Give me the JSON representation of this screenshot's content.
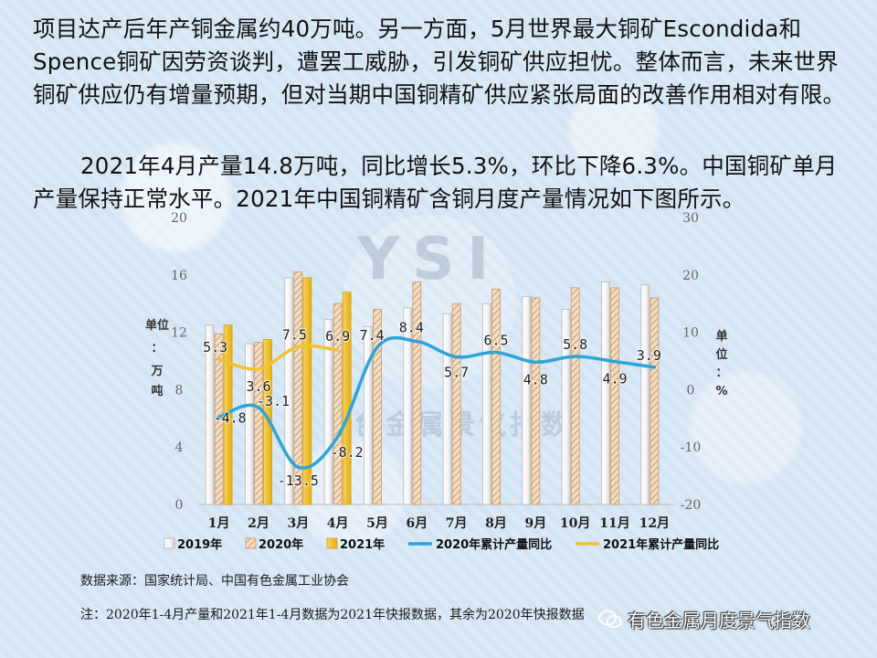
{
  "text": {
    "para1": "项目达产后年产铜金属约40万吨。另一方面，5月世界最大铜矿Escondida和Spence铜矿因劳资谈判，遭罢工威胁，引发铜矿供应担忧。整体而言，未来世界铜矿供应仍有增量预期，但对当期中国铜精矿供应紧张局面的改善作用相对有限。",
    "para2": "2021年4月产量14.8万吨，同比增长5.3%，环比下降6.3%。中国铜矿单月产量保持正常水平。2021年中国铜精矿含铜月度产量情况如下图所示。",
    "source": "数据来源：国家统计局、中国有色金属工业协会",
    "note": "注：2020年1-4月产量和2021年1-4月数据为2021年快报数据，其余为2020年快报数据",
    "watermark": "YSI",
    "watermark_sub": "有色金属景气指数",
    "wechat_account": "有色金属月度景气指数"
  },
  "chart_data": {
    "type": "bar",
    "categories": [
      "1月",
      "2月",
      "3月",
      "4月",
      "5月",
      "6月",
      "7月",
      "8月",
      "9月",
      "10月",
      "11月",
      "12月"
    ],
    "y_left": {
      "label": "单位：万吨",
      "range": [
        0,
        20
      ],
      "ticks": [
        0,
        4,
        8,
        12,
        16,
        20
      ]
    },
    "y_right": {
      "label": "单位：%",
      "range": [
        -20,
        30
      ],
      "ticks": [
        -20,
        -10,
        0,
        10,
        20,
        30
      ]
    },
    "series": [
      {
        "name": "2019年",
        "kind": "bar",
        "axis": "left",
        "color": "#ffffff",
        "values": [
          12.5,
          11.2,
          15.8,
          12.9,
          12.4,
          13.7,
          13.3,
          14.0,
          14.5,
          13.6,
          15.5,
          15.3
        ]
      },
      {
        "name": "2020年",
        "kind": "bar",
        "axis": "left",
        "color": "#e8c9a6",
        "pattern": "hatch",
        "values": [
          11.9,
          11.3,
          16.2,
          14.0,
          13.6,
          15.5,
          14.0,
          15.0,
          14.4,
          15.1,
          15.1,
          14.4
        ]
      },
      {
        "name": "2021年",
        "kind": "bar",
        "axis": "left",
        "color": "#f5c437",
        "values": [
          12.5,
          11.5,
          15.8,
          14.8,
          null,
          null,
          null,
          null,
          null,
          null,
          null,
          null
        ]
      },
      {
        "name": "2020年累计产量同比",
        "kind": "line",
        "axis": "right",
        "color": "#2fa4d8",
        "values": [
          -4.8,
          -3.1,
          -13.5,
          -8.2,
          7.4,
          8.4,
          5.7,
          6.5,
          4.8,
          5.8,
          4.9,
          3.9
        ]
      },
      {
        "name": "2021年累计产量同比",
        "kind": "line",
        "axis": "right",
        "color": "#f2c231",
        "values": [
          5.3,
          3.6,
          7.5,
          6.9,
          null,
          null,
          null,
          null,
          null,
          null,
          null,
          null
        ]
      }
    ],
    "data_labels": [
      {
        "series": 3,
        "index": 0,
        "text": "-4.8"
      },
      {
        "series": 3,
        "index": 1,
        "text": "-3.1"
      },
      {
        "series": 3,
        "index": 2,
        "text": "-13.5"
      },
      {
        "series": 3,
        "index": 3,
        "text": "-8.2"
      },
      {
        "series": 3,
        "index": 4,
        "text": "7.4"
      },
      {
        "series": 3,
        "index": 5,
        "text": "8.4"
      },
      {
        "series": 3,
        "index": 6,
        "text": "5.7"
      },
      {
        "series": 3,
        "index": 7,
        "text": "6.5"
      },
      {
        "series": 3,
        "index": 8,
        "text": "4.8"
      },
      {
        "series": 3,
        "index": 9,
        "text": "5.8"
      },
      {
        "series": 3,
        "index": 10,
        "text": "4.9"
      },
      {
        "series": 3,
        "index": 11,
        "text": "3.9"
      },
      {
        "series": 4,
        "index": 0,
        "text": "5.3"
      },
      {
        "series": 4,
        "index": 1,
        "text": "3.6"
      },
      {
        "series": 4,
        "index": 2,
        "text": "7.5"
      },
      {
        "series": 4,
        "index": 3,
        "text": "6.9"
      }
    ],
    "legend_position": "bottom",
    "grid": false
  }
}
